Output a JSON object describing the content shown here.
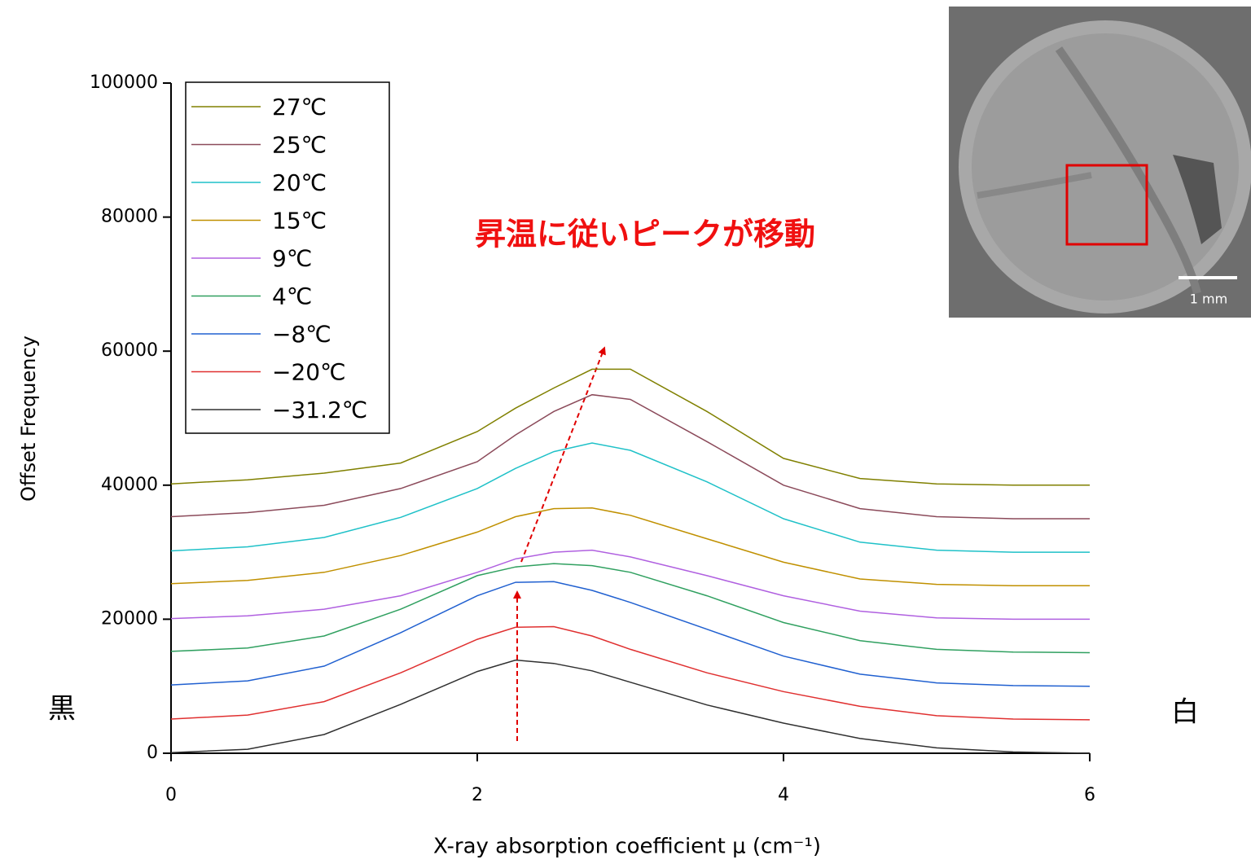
{
  "chart_data": {
    "type": "line",
    "x_label": "X-ray absorption coefficient μ (cm⁻¹)",
    "y_label": "Offset Frequency",
    "annotation": "昇温に従いピークが移動",
    "left_label": "黒",
    "right_label": "白",
    "inset_scale_label": "1 mm",
    "x": [
      0,
      0.5,
      1,
      1.5,
      2,
      2.25,
      2.5,
      2.75,
      3,
      3.5,
      4,
      4.5,
      5,
      5.5,
      6
    ],
    "xlim": [
      0,
      6
    ],
    "xticks": [
      0,
      2,
      4,
      6
    ],
    "ylim": [
      0,
      100000
    ],
    "yticks": [
      0,
      20000,
      40000,
      60000,
      80000,
      100000
    ],
    "legend": "upper left",
    "series": [
      {
        "name": "27℃",
        "color": "#808000",
        "values": [
          40200,
          40800,
          41800,
          43300,
          48000,
          51500,
          54500,
          57300,
          57300,
          51000,
          44000,
          41000,
          40200,
          40000,
          40000
        ]
      },
      {
        "name": "25℃",
        "color": "#8b4a5a",
        "values": [
          35300,
          35900,
          37000,
          39500,
          43500,
          47500,
          51000,
          53500,
          52800,
          46500,
          40000,
          36500,
          35300,
          35000,
          35000
        ]
      },
      {
        "name": "20℃",
        "color": "#1fc1c8",
        "values": [
          30200,
          30800,
          32200,
          35200,
          39500,
          42500,
          45000,
          46300,
          45200,
          40500,
          35000,
          31500,
          30300,
          30000,
          30000
        ]
      },
      {
        "name": "15℃",
        "color": "#c09000",
        "values": [
          25300,
          25800,
          27000,
          29500,
          33000,
          35300,
          36500,
          36600,
          35500,
          32000,
          28500,
          26000,
          25200,
          25000,
          25000
        ]
      },
      {
        "name": "9℃",
        "color": "#b060e0",
        "values": [
          20100,
          20500,
          21500,
          23500,
          27000,
          29000,
          30000,
          30300,
          29300,
          26500,
          23500,
          21200,
          20200,
          20000,
          20000
        ]
      },
      {
        "name": "4℃",
        "color": "#30a060",
        "values": [
          15200,
          15700,
          17500,
          21500,
          26500,
          27800,
          28300,
          28000,
          27000,
          23500,
          19500,
          16800,
          15500,
          15100,
          15000
        ]
      },
      {
        "name": "−8℃",
        "color": "#2060d0",
        "values": [
          10200,
          10800,
          13000,
          18000,
          23500,
          25500,
          25600,
          24300,
          22500,
          18500,
          14500,
          11800,
          10500,
          10100,
          10000
        ]
      },
      {
        "name": "−20℃",
        "color": "#e03030",
        "values": [
          5100,
          5700,
          7700,
          12000,
          17000,
          18800,
          18900,
          17500,
          15500,
          12000,
          9200,
          7000,
          5600,
          5100,
          5000
        ]
      },
      {
        "name": "−31.2℃",
        "color": "#303030",
        "values": [
          100,
          600,
          2800,
          7300,
          12200,
          13900,
          13400,
          12300,
          10600,
          7200,
          4500,
          2200,
          800,
          200,
          0
        ]
      }
    ]
  }
}
